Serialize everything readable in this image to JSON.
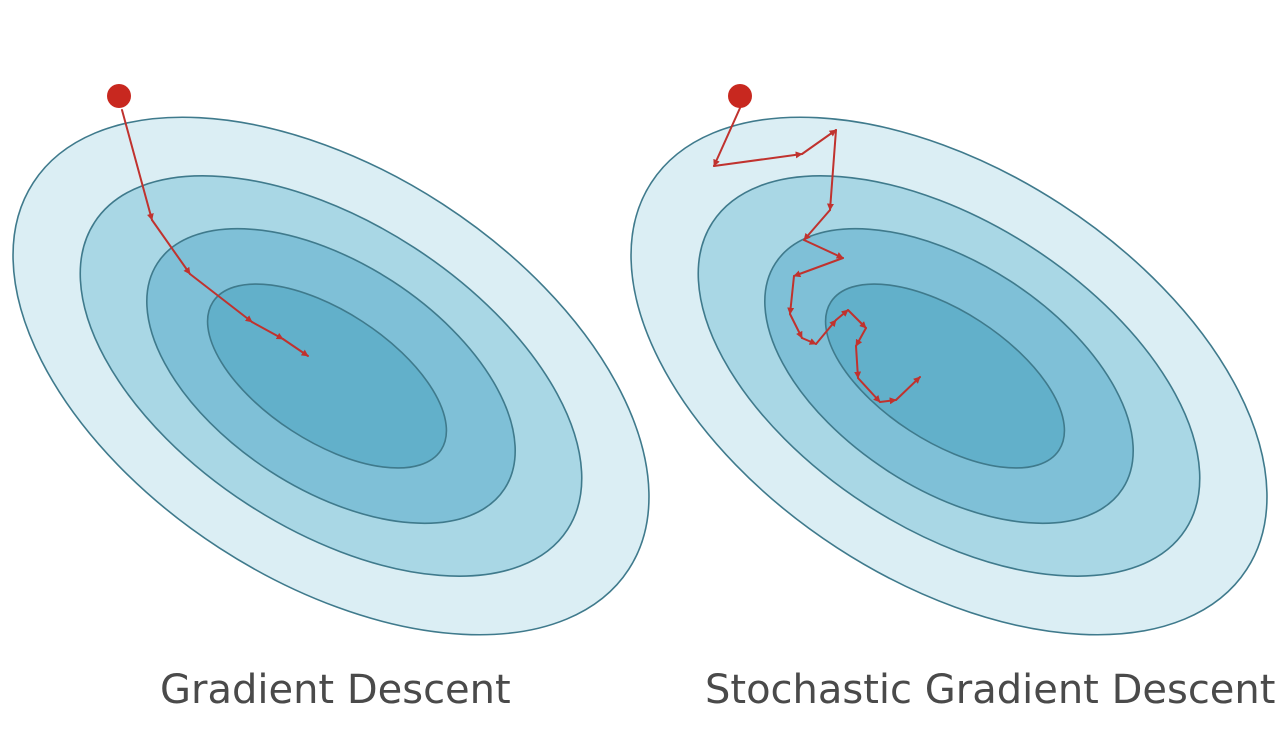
{
  "panels": [
    {
      "caption": "Gradient Descent"
    },
    {
      "caption": "Stochastic Gradient Descent"
    }
  ],
  "colors": {
    "level1": "#dbeef4",
    "level2": "#a9d7e5",
    "level3": "#7fc0d7",
    "level4": "#62b0ca",
    "outline": "#3f7a8c",
    "path": "#c0322e",
    "start_point": "#c8281f",
    "caption_text": "#4a4a4a"
  },
  "icons": {
    "start": "circle",
    "step": "arrow"
  }
}
